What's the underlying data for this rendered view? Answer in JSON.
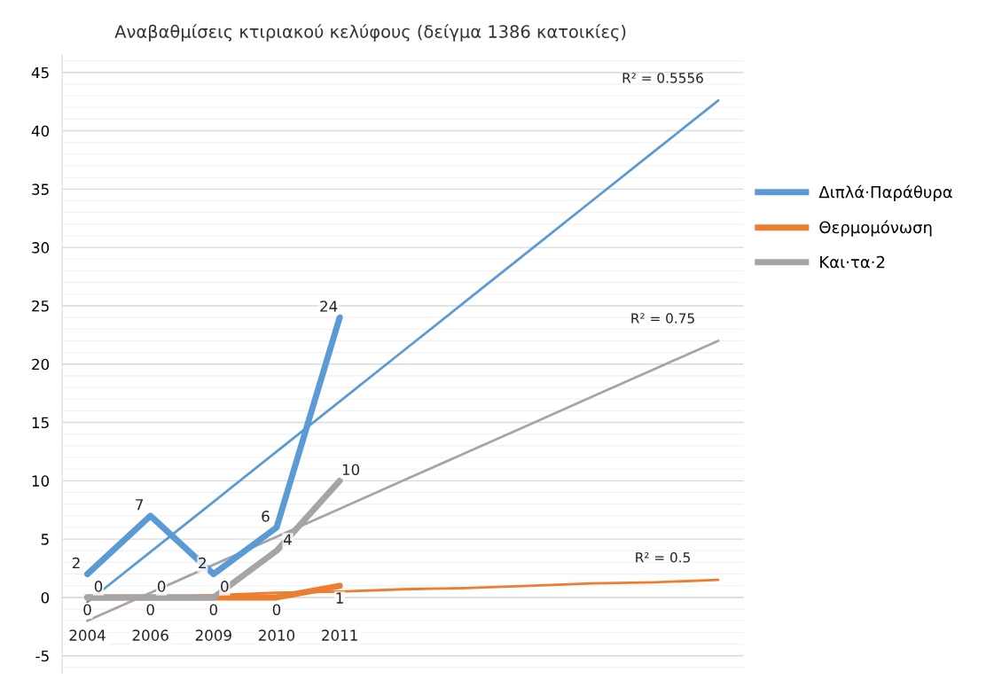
{
  "chart_data": {
    "type": "line",
    "title": "Αναβαθμίσεις κτιριακού κελύφους (δείγμα 1386 κατοικίες)",
    "categories": [
      "2004",
      "2006",
      "2009",
      "2010",
      "2011",
      null,
      null,
      null,
      null,
      null,
      null
    ],
    "series": [
      {
        "name": "Διπλά·Παράθυρα",
        "color": "#5b9bd5",
        "values": [
          2,
          7,
          2,
          6,
          24,
          null,
          null,
          null,
          null,
          null,
          null
        ],
        "value_labels": [
          "2",
          "7",
          "2",
          "6",
          "24",
          null,
          null,
          null,
          null,
          null,
          null
        ]
      },
      {
        "name": "Θερμομόνωση",
        "color": "#ed7d31",
        "values": [
          0,
          0,
          0,
          0,
          1,
          null,
          null,
          null,
          null,
          null,
          null
        ],
        "value_labels": [
          "0",
          "0",
          "0",
          "0",
          "1",
          null,
          null,
          null,
          null,
          null,
          null
        ]
      },
      {
        "name": "Και·τα·2",
        "color": "#a5a5a5",
        "values": [
          0,
          0,
          0,
          4,
          10,
          null,
          null,
          null,
          null,
          null,
          null
        ],
        "value_labels": [
          "0",
          "0",
          "0",
          "4",
          "10",
          null,
          null,
          null,
          null,
          null,
          null
        ]
      },
      {
        "color": "#5b9bd5",
        "values": [
          -0.4,
          3.9,
          8.2,
          12.5,
          16.8,
          21.1,
          25.4,
          29.7,
          34.0,
          38.3,
          42.6
        ]
      },
      {
        "color": "#a5a5a5",
        "values": [
          -2.0,
          0.4,
          2.8,
          5.2,
          7.6,
          10.0,
          12.4,
          14.8,
          17.2,
          19.6,
          22.0
        ]
      },
      {
        "color": "#ed7d31",
        "values": [
          -0.1,
          0.0,
          0.2,
          0.4,
          0.5,
          0.7,
          0.8,
          1.0,
          1.2,
          1.3,
          1.5
        ]
      }
    ],
    "annotations": [
      "R² = 0.5556",
      "R² = 0.75",
      "R² = 0.5"
    ],
    "ylim": [
      -6.5,
      46.5
    ],
    "yticks": [
      -5,
      0,
      5,
      10,
      15,
      20,
      25,
      30,
      35,
      40,
      45
    ],
    "grid": "y",
    "legend": "right"
  }
}
